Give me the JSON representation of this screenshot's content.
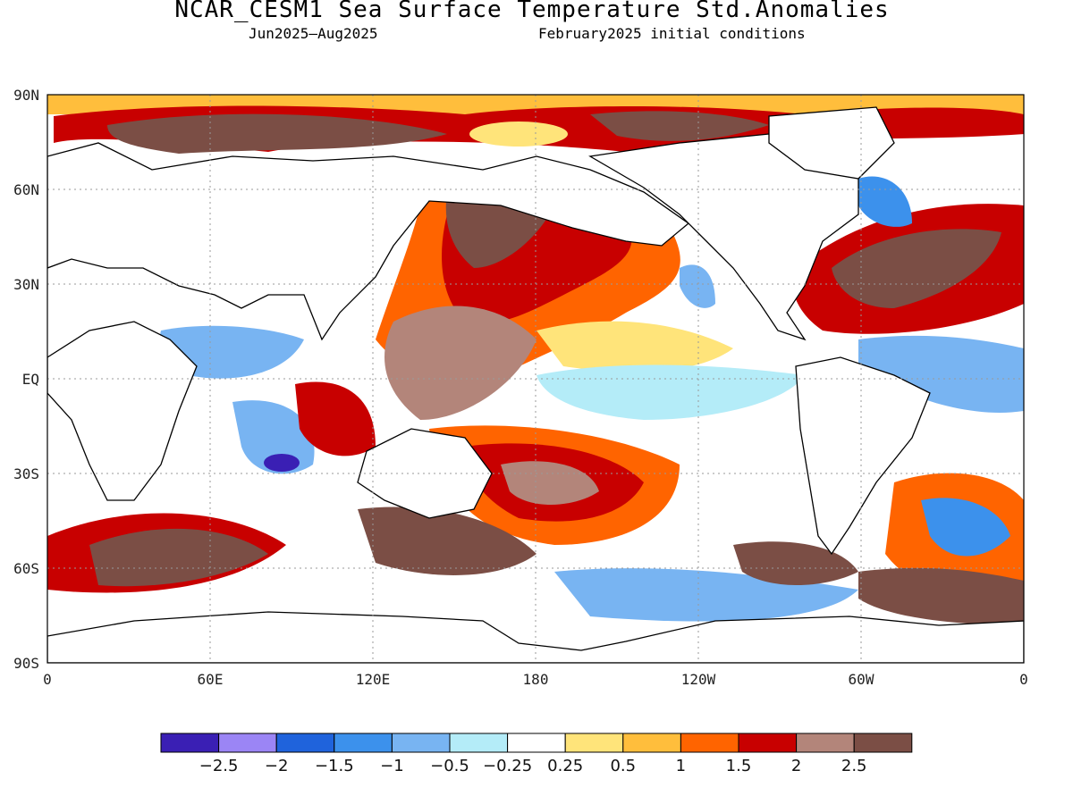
{
  "title": "NCAR_CESM1 Sea Surface Temperature Std.Anomalies",
  "subtitle_period": "Jun2025–Aug2025",
  "subtitle_init": "February2025 initial conditions",
  "lat_labels": [
    "90N",
    "60N",
    "30N",
    "EQ",
    "30S",
    "60S",
    "90S"
  ],
  "lon_labels": [
    "0",
    "60E",
    "120E",
    "180",
    "120W",
    "60W",
    "0"
  ],
  "colorbar": {
    "colors": [
      "#3a1fb4",
      "#9b85f5",
      "#1f63dc",
      "#3c91ec",
      "#78b4f2",
      "#b4ecf8",
      "#ffffff",
      "#ffe47a",
      "#ffbe3c",
      "#ff6400",
      "#c80000",
      "#b3857a",
      "#7b4e45"
    ],
    "labels": [
      "−2.5",
      "−2",
      "−1.5",
      "−1",
      "−0.5",
      "−0.25",
      "0.25",
      "0.5",
      "1",
      "1.5",
      "2",
      "2.5"
    ]
  }
}
